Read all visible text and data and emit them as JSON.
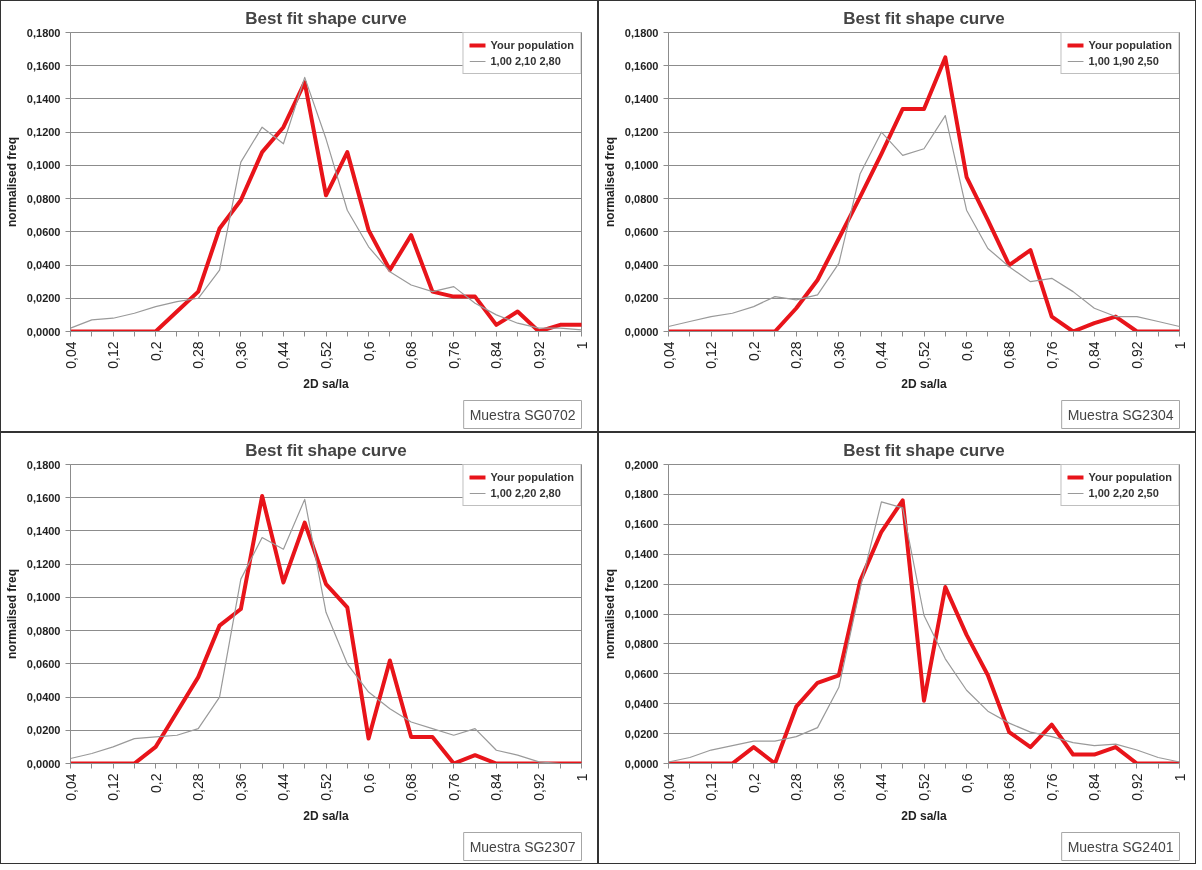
{
  "chart_data": [
    {
      "type": "line",
      "title": "Best fit shape curve",
      "xlabel": "2D sa/la",
      "ylabel": "normalised freq",
      "annotations": [
        "Muestra SG0702"
      ],
      "legend": "top right",
      "grid": "y",
      "categories": [
        "0,04",
        null,
        "0,12",
        null,
        "0,2",
        null,
        "0,28",
        null,
        "0,36",
        null,
        "0,44",
        null,
        "0,52",
        null,
        "0,6",
        null,
        "0,68",
        null,
        "0,76",
        null,
        "0,84",
        null,
        "0,92",
        null,
        "1"
      ],
      "ylim": [
        0,
        0.18
      ],
      "yticks": [
        {
          "value": 0,
          "label": "0,0000"
        },
        {
          "value": 0.02,
          "label": "0,0200"
        },
        {
          "value": 0.04,
          "label": "0,0400"
        },
        {
          "value": 0.06,
          "label": "0,0600"
        },
        {
          "value": 0.08,
          "label": "0,0800"
        },
        {
          "value": 0.1,
          "label": "0,1000"
        },
        {
          "value": 0.12,
          "label": "0,1200"
        },
        {
          "value": 0.14,
          "label": "0,1400"
        },
        {
          "value": 0.16,
          "label": "0,1600"
        },
        {
          "value": 0.18,
          "label": "0,1800"
        }
      ],
      "series": [
        {
          "name": "Your population",
          "color": "#e8141a",
          "values": [
            0,
            0,
            0,
            0,
            0,
            0.012,
            0.024,
            0.062,
            0.079,
            0.108,
            0.123,
            0.15,
            0.082,
            0.108,
            0.061,
            0.037,
            0.058,
            0.024,
            0.021,
            0.021,
            0.004,
            0.012,
            0,
            0.004,
            0.004
          ]
        },
        {
          "name": "1,00 2,10 2,80",
          "color": "#9a9a9a",
          "values": [
            0.002,
            0.007,
            0.008,
            0.011,
            0.015,
            0.018,
            0.02,
            0.037,
            0.102,
            0.123,
            0.113,
            0.153,
            0.116,
            0.073,
            0.051,
            0.036,
            0.028,
            0.024,
            0.027,
            0.017,
            0.01,
            0.005,
            0.002,
            0.002,
            0.001
          ]
        }
      ]
    },
    {
      "type": "line",
      "title": "Best fit shape curve",
      "xlabel": "2D sa/la",
      "ylabel": "normalised freq",
      "annotations": [
        "Muestra SG2304"
      ],
      "legend": "top right",
      "grid": "y",
      "categories": [
        "0,04",
        null,
        "0,12",
        null,
        "0,2",
        null,
        "0,28",
        null,
        "0,36",
        null,
        "0,44",
        null,
        "0,52",
        null,
        "0,6",
        null,
        "0,68",
        null,
        "0,76",
        null,
        "0,84",
        null,
        "0,92",
        null,
        "1"
      ],
      "ylim": [
        0,
        0.18
      ],
      "yticks": [
        {
          "value": 0,
          "label": "0,0000"
        },
        {
          "value": 0.02,
          "label": "0,0200"
        },
        {
          "value": 0.04,
          "label": "0,0400"
        },
        {
          "value": 0.06,
          "label": "0,0600"
        },
        {
          "value": 0.08,
          "label": "0,0800"
        },
        {
          "value": 0.1,
          "label": "0,1000"
        },
        {
          "value": 0.12,
          "label": "0,1200"
        },
        {
          "value": 0.14,
          "label": "0,1400"
        },
        {
          "value": 0.16,
          "label": "0,1600"
        },
        {
          "value": 0.18,
          "label": "0,1800"
        }
      ],
      "series": [
        {
          "name": "Your population",
          "color": "#e8141a",
          "values": [
            0,
            0,
            0,
            0,
            0,
            0,
            0.014,
            0.031,
            0.056,
            0.081,
            0.107,
            0.134,
            0.134,
            0.165,
            0.093,
            0.067,
            0.04,
            0.049,
            0.009,
            0,
            0.005,
            0.009,
            0,
            0,
            0
          ]
        },
        {
          "name": "1,00 1,90 2,50",
          "color": "#9a9a9a",
          "values": [
            0.003,
            0.006,
            0.009,
            0.011,
            0.015,
            0.021,
            0.019,
            0.022,
            0.041,
            0.095,
            0.12,
            0.106,
            0.11,
            0.13,
            0.073,
            0.05,
            0.039,
            0.03,
            0.032,
            0.024,
            0.014,
            0.009,
            0.009,
            0.006,
            0.003
          ]
        }
      ]
    },
    {
      "type": "line",
      "title": "Best fit shape curve",
      "xlabel": "2D sa/la",
      "ylabel": "normalised freq",
      "annotations": [
        "Muestra SG2307"
      ],
      "legend": "top right",
      "grid": "y",
      "categories": [
        "0,04",
        null,
        "0,12",
        null,
        "0,2",
        null,
        "0,28",
        null,
        "0,36",
        null,
        "0,44",
        null,
        "0,52",
        null,
        "0,6",
        null,
        "0,68",
        null,
        "0,76",
        null,
        "0,84",
        null,
        "0,92",
        null,
        "1"
      ],
      "ylim": [
        0,
        0.18
      ],
      "yticks": [
        {
          "value": 0,
          "label": "0,0000"
        },
        {
          "value": 0.02,
          "label": "0,0200"
        },
        {
          "value": 0.04,
          "label": "0,0400"
        },
        {
          "value": 0.06,
          "label": "0,0600"
        },
        {
          "value": 0.08,
          "label": "0,0800"
        },
        {
          "value": 0.1,
          "label": "0,1000"
        },
        {
          "value": 0.12,
          "label": "0,1200"
        },
        {
          "value": 0.14,
          "label": "0,1400"
        },
        {
          "value": 0.16,
          "label": "0,1600"
        },
        {
          "value": 0.18,
          "label": "0,1800"
        }
      ],
      "series": [
        {
          "name": "Your population",
          "color": "#e8141a",
          "values": [
            0,
            0,
            0,
            0,
            0.01,
            0.031,
            0.052,
            0.083,
            0.093,
            0.161,
            0.109,
            0.145,
            0.108,
            0.094,
            0.015,
            0.062,
            0.016,
            0.016,
            0,
            0.005,
            0,
            0,
            0,
            0,
            0
          ]
        },
        {
          "name": "1,00 2,20 2,80",
          "color": "#9a9a9a",
          "values": [
            0.003,
            0.006,
            0.01,
            0.015,
            0.016,
            0.017,
            0.021,
            0.04,
            0.111,
            0.136,
            0.129,
            0.159,
            0.091,
            0.06,
            0.043,
            0.033,
            0.025,
            0.021,
            0.017,
            0.021,
            0.008,
            0.005,
            0.001,
            0,
            0
          ]
        }
      ]
    },
    {
      "type": "line",
      "title": "Best fit shape curve",
      "xlabel": "2D sa/la",
      "ylabel": "normalised freq",
      "annotations": [
        "Muestra SG2401"
      ],
      "legend": "top right",
      "grid": "y",
      "categories": [
        "0,04",
        null,
        "0,12",
        null,
        "0,2",
        null,
        "0,28",
        null,
        "0,36",
        null,
        "0,44",
        null,
        "0,52",
        null,
        "0,6",
        null,
        "0,68",
        null,
        "0,76",
        null,
        "0,84",
        null,
        "0,92",
        null,
        "1"
      ],
      "ylim": [
        0,
        0.2
      ],
      "yticks": [
        {
          "value": 0,
          "label": "0,0000"
        },
        {
          "value": 0.02,
          "label": "0,0200"
        },
        {
          "value": 0.04,
          "label": "0,0400"
        },
        {
          "value": 0.06,
          "label": "0,0600"
        },
        {
          "value": 0.08,
          "label": "0,0800"
        },
        {
          "value": 0.1,
          "label": "0,1000"
        },
        {
          "value": 0.12,
          "label": "0,1200"
        },
        {
          "value": 0.14,
          "label": "0,1400"
        },
        {
          "value": 0.16,
          "label": "0,1600"
        },
        {
          "value": 0.18,
          "label": "0,1800"
        },
        {
          "value": 0.2,
          "label": "0,2000"
        }
      ],
      "series": [
        {
          "name": "Your population",
          "color": "#e8141a",
          "values": [
            0,
            0,
            0,
            0,
            0.011,
            0,
            0.038,
            0.054,
            0.059,
            0.122,
            0.155,
            0.176,
            0.042,
            0.118,
            0.086,
            0.059,
            0.021,
            0.011,
            0.026,
            0.006,
            0.006,
            0.011,
            0,
            0,
            0
          ]
        },
        {
          "name": "1,00 2,20 2,50",
          "color": "#9a9a9a",
          "values": [
            0.001,
            0.004,
            0.009,
            0.012,
            0.015,
            0.015,
            0.018,
            0.024,
            0.051,
            0.117,
            0.175,
            0.171,
            0.099,
            0.07,
            0.049,
            0.035,
            0.027,
            0.021,
            0.018,
            0.014,
            0.012,
            0.013,
            0.009,
            0.004,
            0.001
          ]
        }
      ]
    }
  ]
}
